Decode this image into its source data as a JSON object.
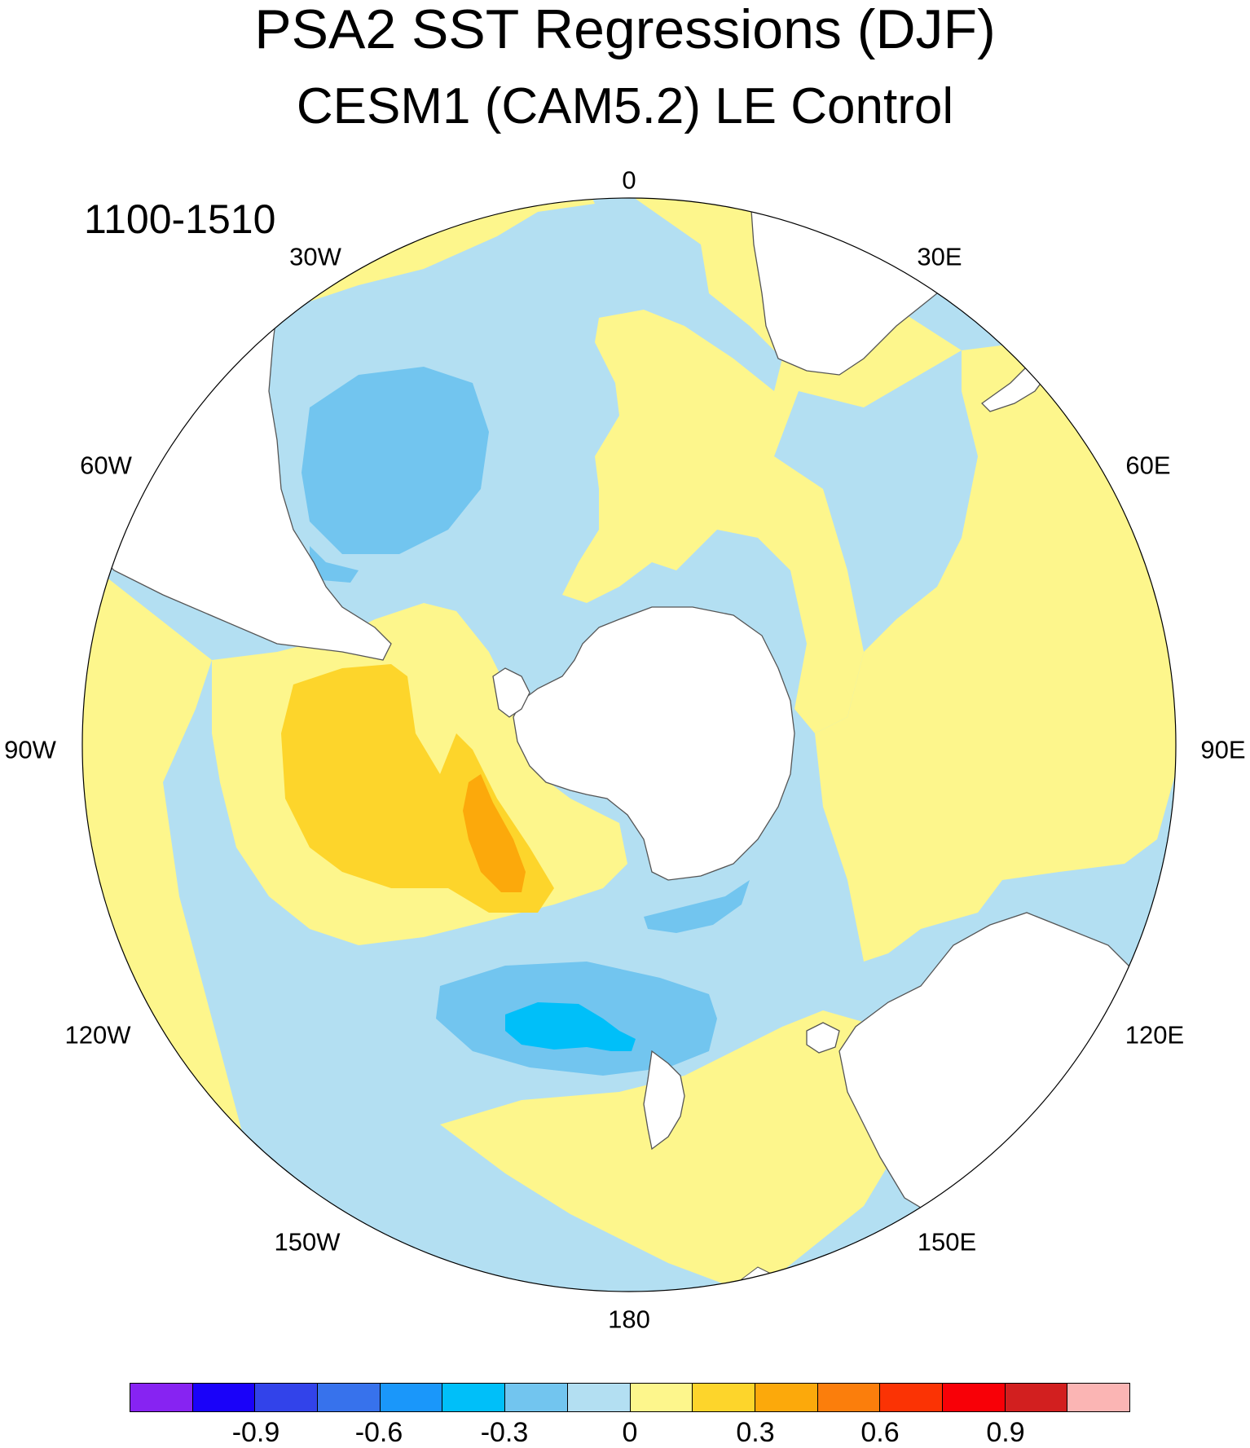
{
  "header": {
    "title": "PSA2 SST Regressions (DJF)",
    "subtitle": "CESM1 (CAM5.2) LE Control",
    "period": "1100-1510"
  },
  "longitude_labels": {
    "lon_0": "0",
    "lon_30e": "30E",
    "lon_60e": "60E",
    "lon_90e": "90E",
    "lon_120e": "120E",
    "lon_150e": "150E",
    "lon_180": "180",
    "lon_150w": "150W",
    "lon_120w": "120W",
    "lon_90w": "90W",
    "lon_60w": "60W",
    "lon_30w": "30W"
  },
  "colors": {
    "land": "#ffffff",
    "ocean_pos_01": "#fdf68c",
    "ocean_neg_01": "#b3dff2",
    "ocean_neg_02": "#72c5ef",
    "ocean_neg_03": "#00bff9",
    "ocean_pos_02": "#fdd52b",
    "ocean_pos_03": "#fca90b",
    "coast": "#555555"
  },
  "colorbar": {
    "colors": [
      "#8723f2",
      "#1a02f9",
      "#3243ea",
      "#3772ec",
      "#1a97fa",
      "#00bff9",
      "#72c5ef",
      "#b3dff2",
      "#fdf68c",
      "#fdd52b",
      "#fca90b",
      "#fb7e0c",
      "#fb3304",
      "#f80007",
      "#d21f1f",
      "#fbb5b4"
    ],
    "tick_labels": [
      "-0.9",
      "-0.6",
      "-0.3",
      "0",
      "0.3",
      "0.6",
      "0.9"
    ]
  }
}
